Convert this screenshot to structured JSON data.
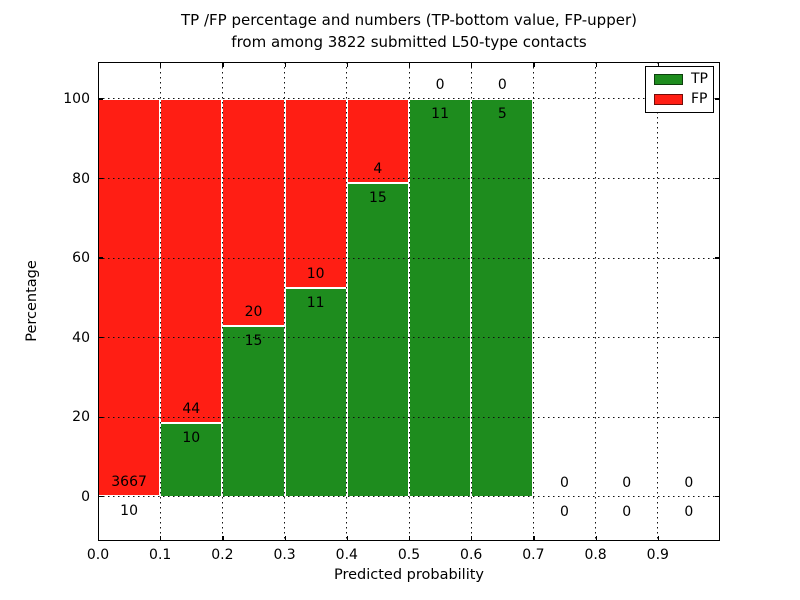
{
  "chart_data": {
    "type": "bar",
    "stacked": true,
    "normalized": "percent",
    "title_line1": "TP /FP percentage and numbers (TP-bottom value, FP-upper)",
    "title_line2": "from among 3822 submitted L50-type contacts",
    "xlabel": "Predicted probability",
    "ylabel": "Percentage",
    "x_tick_labels": [
      "0.0",
      "0.1",
      "0.2",
      "0.3",
      "0.4",
      "0.5",
      "0.6",
      "0.7",
      "0.8",
      "0.9"
    ],
    "y_tick_values": [
      0,
      20,
      40,
      60,
      80,
      100
    ],
    "bin_edges": [
      0.0,
      0.1,
      0.2,
      0.3,
      0.4,
      0.5,
      0.6,
      0.7,
      0.8,
      0.9,
      1.0
    ],
    "series": [
      {
        "name": "TP",
        "color": "#1e8c1e",
        "values": [
          10,
          10,
          15,
          11,
          15,
          11,
          5,
          0,
          0,
          0
        ]
      },
      {
        "name": "FP",
        "color": "#ff1e14",
        "values": [
          3667,
          44,
          20,
          10,
          4,
          0,
          0,
          0,
          0,
          0
        ]
      }
    ],
    "legend": {
      "position": "upper right",
      "entries": [
        {
          "label": "TP",
          "color": "#1e8c1e"
        },
        {
          "label": "FP",
          "color": "#ff1e14"
        }
      ]
    },
    "xlim": [
      0.0,
      1.0
    ],
    "ylim": [
      -11.1,
      109.3
    ],
    "grid": true,
    "grid_style": "dotted"
  }
}
